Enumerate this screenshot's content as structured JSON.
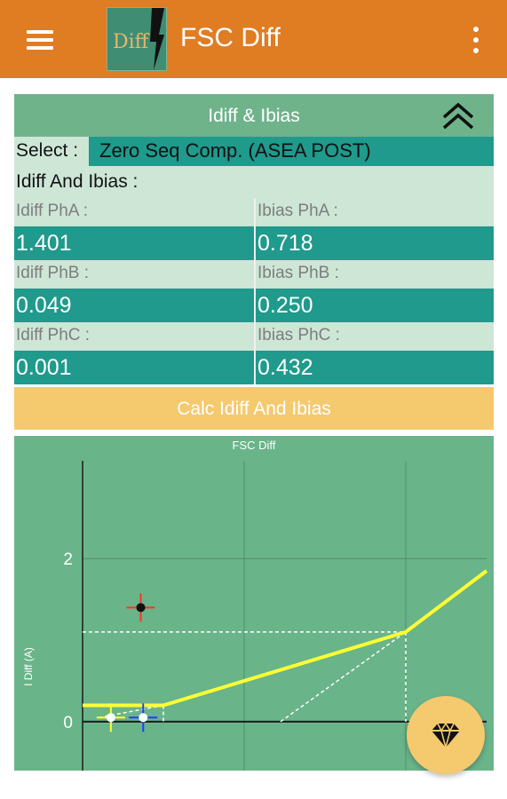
{
  "app": {
    "title": "FSC Diff",
    "logo_text": "Diff"
  },
  "panel": {
    "header_title": "Idiff & Ibias",
    "select_label": "Select :",
    "select_value": "Zero Seq Comp. (ASEA POST)",
    "section_label": "Idiff And Ibias :",
    "rows": [
      {
        "left_label": "Idiff PhA :",
        "right_label": "Ibias PhA :",
        "left_value": "1.401",
        "right_value": "0.718"
      },
      {
        "left_label": "Idiff PhB :",
        "right_label": "Ibias PhB :",
        "left_value": "0.049",
        "right_value": "0.250"
      },
      {
        "left_label": "Idiff PhC :",
        "right_label": "Ibias PhC :",
        "left_value": "0.001",
        "right_value": "0.432"
      }
    ]
  },
  "calc_button_label": "Calc Idiff And Ibias",
  "chart_data": {
    "type": "line",
    "title": "FSC Diff",
    "ylabel": "I Diff (A)",
    "xlabel": "",
    "ytick_labels": [
      "0",
      "2"
    ],
    "grid": true,
    "xlim": [
      0,
      5
    ],
    "ylim": [
      -0.6,
      3.2
    ],
    "series": [
      {
        "color": "#ffff33",
        "x": [
          0,
          1,
          4,
          5
        ],
        "y": [
          0.2,
          0.2,
          1.1,
          1.85
        ]
      }
    ],
    "points": [
      {
        "x": 0.35,
        "y": 0.05,
        "color": "#ffff33"
      },
      {
        "x": 0.75,
        "y": 0.05,
        "color": "#1f3cff"
      },
      {
        "x": 0.72,
        "y": 1.4,
        "color": "#ff3322"
      }
    ]
  }
}
